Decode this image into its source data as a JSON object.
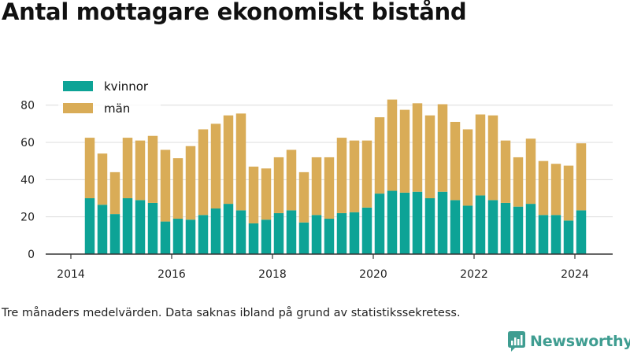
{
  "title": "Antal mottagare ekonomiskt bistånd",
  "caption": "Tre månaders medelvärden. Data saknas ibland på grund av statistikssekretess.",
  "brand": {
    "name": "Newsworthy",
    "icon": "newsworthy-logo-icon",
    "color": "#3f9d91"
  },
  "chart_data": {
    "type": "bar",
    "stacked": true,
    "title": "",
    "xlabel": "",
    "ylabel": "",
    "ylim": [
      0,
      90
    ],
    "yticks": [
      0,
      20,
      40,
      60,
      80
    ],
    "x_range": [
      2013.5,
      2024.75
    ],
    "xticks": [
      "2014",
      "2016",
      "2018",
      "2020",
      "2022",
      "2024"
    ],
    "grid": true,
    "legend_position": "top-left",
    "x": [
      2014.375,
      2014.625,
      2014.875,
      2015.125,
      2015.375,
      2015.625,
      2015.875,
      2016.125,
      2016.375,
      2016.625,
      2016.875,
      2017.125,
      2017.375,
      2017.625,
      2017.875,
      2018.125,
      2018.375,
      2018.625,
      2018.875,
      2019.125,
      2019.375,
      2019.625,
      2019.875,
      2020.125,
      2020.375,
      2020.625,
      2020.875,
      2021.125,
      2021.375,
      2021.625,
      2021.875,
      2022.125,
      2022.375,
      2022.625,
      2022.875,
      2023.125,
      2023.375,
      2023.625,
      2023.875,
      2024.125
    ],
    "series": [
      {
        "name": "kvinnor",
        "color": "#0da396",
        "values": [
          30,
          26.5,
          21.5,
          30,
          29,
          27.5,
          17.5,
          19,
          18.5,
          21,
          24.5,
          27,
          23.5,
          16.5,
          18.5,
          22,
          23.5,
          17,
          21,
          19,
          22,
          22.5,
          25,
          32.5,
          34,
          33,
          33.5,
          30,
          33.5,
          29,
          26,
          31.5,
          29,
          27.5,
          25.5,
          27,
          21,
          21,
          18,
          23.5
        ]
      },
      {
        "name": "män",
        "color": "#d9ac57",
        "values": [
          32.5,
          27.5,
          22.5,
          32.5,
          32,
          36,
          38.5,
          32.5,
          39.5,
          46,
          45.5,
          47.5,
          52,
          30.5,
          27.5,
          30,
          32.5,
          27,
          31,
          33,
          40.5,
          38.5,
          36,
          41,
          49,
          44.5,
          47.5,
          44.5,
          47,
          42,
          41,
          43.5,
          45.5,
          33.5,
          26.5,
          35,
          29,
          27.5,
          29.5,
          36
        ]
      }
    ]
  }
}
